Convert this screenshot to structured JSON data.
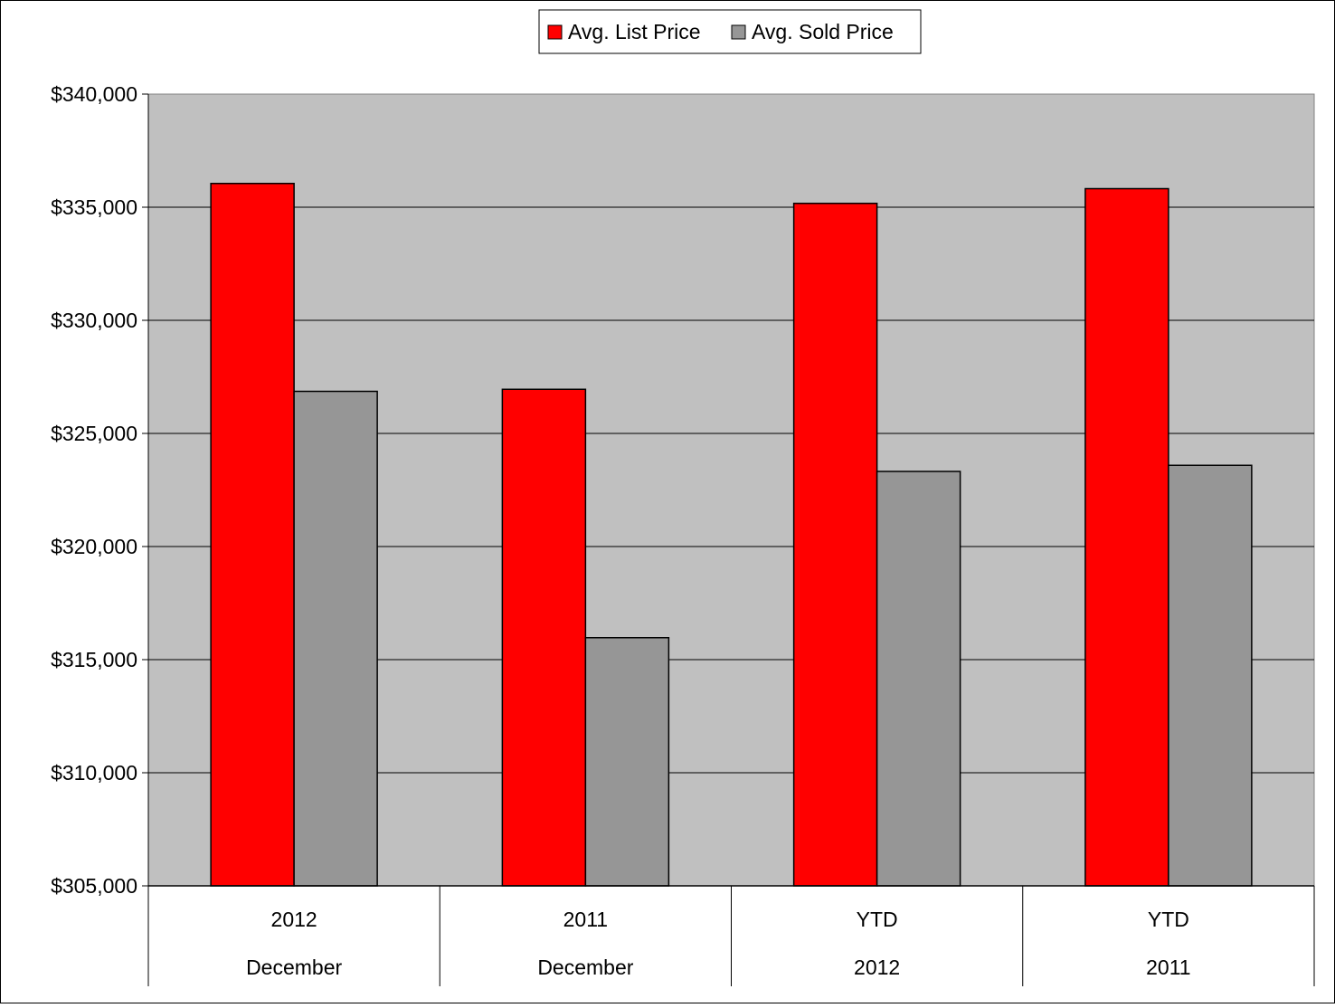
{
  "chart_data": {
    "type": "bar",
    "categories": [
      {
        "line1": "2012",
        "line2": "December"
      },
      {
        "line1": "2011",
        "line2": "December"
      },
      {
        "line1": "YTD",
        "line2": "2012"
      },
      {
        "line1": "YTD",
        "line2": "2011"
      }
    ],
    "series": [
      {
        "name": "Avg. List Price",
        "color": "#ff0000",
        "values": [
          336050,
          326950,
          335170,
          335820
        ]
      },
      {
        "name": "Avg. Sold Price",
        "color": "#969696",
        "values": [
          326860,
          315970,
          323320,
          323590
        ]
      }
    ],
    "ylim": [
      305000,
      340000
    ],
    "yticks": [
      305000,
      310000,
      315000,
      320000,
      325000,
      330000,
      335000,
      340000
    ],
    "ytick_labels": [
      "$305,000",
      "$310,000",
      "$315,000",
      "$320,000",
      "$325,000",
      "$330,000",
      "$335,000",
      "$340,000"
    ],
    "grid": true,
    "legend_position": "top-center",
    "plot_background": "#c0c0c0",
    "title": "",
    "xlabel": "",
    "ylabel": ""
  }
}
